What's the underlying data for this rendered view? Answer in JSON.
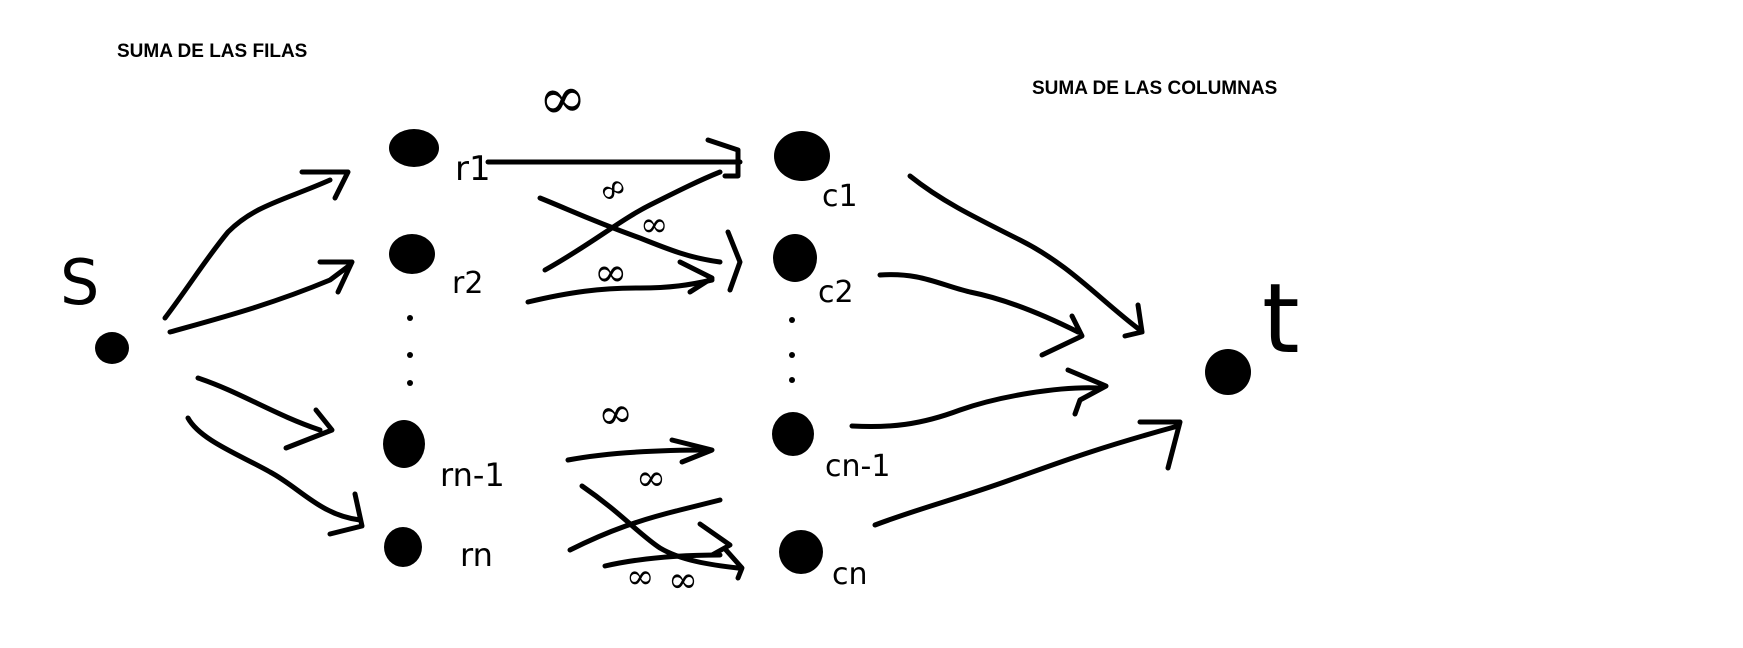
{
  "headings": {
    "rows_sum": "SUMA DE LAS FILAS",
    "cols_sum": "SUMA DE LAS COLUMNAS"
  },
  "nodes": {
    "source": "S",
    "sink": "t",
    "rows": [
      "r1",
      "r2",
      "rn-1",
      "rn"
    ],
    "cols": [
      "c1",
      "c2",
      "cn-1",
      "cn"
    ]
  },
  "infinity": "∞",
  "colors": {
    "ink": "#000000",
    "background": "#ffffff"
  }
}
